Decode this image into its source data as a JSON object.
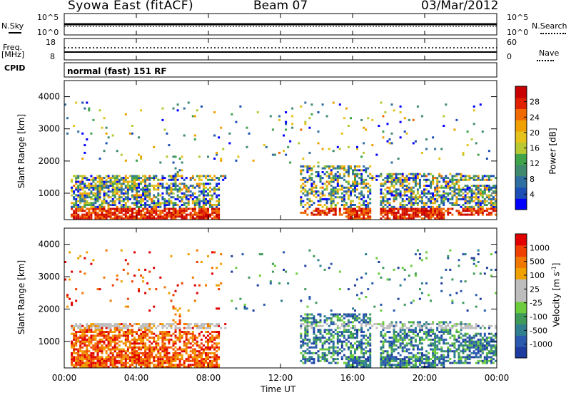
{
  "header": {
    "station": "Syowa East (fitACF)",
    "beam": "Beam 07",
    "date": "03/Mar/2012"
  },
  "top_panels": {
    "nsky_label": "N.Sky",
    "nsearch_label": "N.Search",
    "freq_label": "Freq.",
    "freq_unit": "[MHz]",
    "nave_label": "Nave",
    "cpid_label": "CPID",
    "noise_ticks_left": [
      "10^5",
      "10^0"
    ],
    "noise_ticks_right": [
      "10^5",
      "10^0"
    ],
    "freq_ticks_left": [
      "18",
      "8"
    ],
    "nave_ticks_right": [
      "60",
      "0"
    ],
    "cpid_text": "normal (fast) 151 RF"
  },
  "x_axis": {
    "label": "Time UT",
    "ticks": [
      "00:00",
      "04:00",
      "08:00",
      "12:00",
      "16:00",
      "20:00",
      "00:00"
    ]
  },
  "chart_data": [
    {
      "type": "heatmap",
      "panel": "power",
      "ylabel": "Slant Range [km]",
      "yticks": [
        "4000",
        "3000",
        "2000",
        "1000"
      ],
      "ylim": [
        180,
        4500
      ],
      "xlim": [
        0,
        24
      ],
      "colorbar_label": "Power [dB]",
      "colorbar_ticks": [
        "28",
        "24",
        "20",
        "16",
        "12",
        "8",
        "4"
      ],
      "colorbar_colors": [
        "#0000ff",
        "#1c4fb5",
        "#2f6ea1",
        "#3f8a6f",
        "#3fa34a",
        "#b8c832",
        "#e6c31a",
        "#f0a000",
        "#f06a00",
        "#e02000",
        "#c80000"
      ]
    },
    {
      "type": "heatmap",
      "panel": "velocity",
      "ylabel": "Slant Range [km]",
      "yticks": [
        "4000",
        "3000",
        "2000",
        "1000"
      ],
      "ylim": [
        180,
        4500
      ],
      "xlim": [
        0,
        24
      ],
      "colorbar_label": "Velocity [m s^-1]",
      "colorbar_ticks": [
        "1000",
        "500",
        "100",
        "25",
        "-25",
        "-100",
        "-500",
        "-1000"
      ],
      "colorbar_colors": [
        "#1e3ca0",
        "#2a5ab0",
        "#2f7f8f",
        "#3f9a5a",
        "#6ccc3c",
        "#bdbdbd",
        "#bdbdbd",
        "#f0a000",
        "#f07800",
        "#f04000",
        "#e00000"
      ]
    }
  ]
}
